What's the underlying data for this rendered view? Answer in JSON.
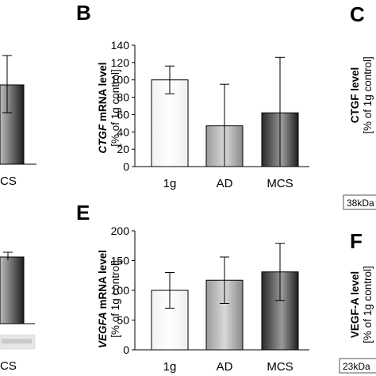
{
  "panels": {
    "B": "B",
    "C": "C",
    "E": "E",
    "F": "F"
  },
  "left_partial": {
    "top_category": "CS",
    "bottom_category": "CS"
  },
  "right_partial": {
    "C_ylabel_line1": "CTGF level",
    "C_ylabel_line2": "[% of 1g control]",
    "C_blot": "38kDa",
    "F_ylabel_line1": "VEGF-A level",
    "F_ylabel_line2": "[% of 1g control]",
    "F_blot": "23kDa"
  },
  "colors": {
    "bar_1g": "#ffffff",
    "bar_AD": "#b8b8b8",
    "bar_MCS": "#5a5a5a"
  },
  "chart_data": [
    {
      "panel": "B",
      "type": "bar",
      "categories": [
        "1g",
        "AD",
        "MCS"
      ],
      "values": [
        100,
        47,
        62
      ],
      "errors": [
        16,
        48,
        64
      ],
      "ylim": [
        0,
        140
      ],
      "yticks": [
        0,
        20,
        40,
        60,
        80,
        100,
        120,
        140
      ],
      "ylabel_gene": "CTGF",
      "ylabel_rest": " mRNA level",
      "ylabel_line2": "[% of 1g control]"
    },
    {
      "panel": "E",
      "type": "bar",
      "categories": [
        "1g",
        "AD",
        "MCS"
      ],
      "values": [
        100,
        117,
        131
      ],
      "errors": [
        30,
        39,
        48
      ],
      "ylim": [
        0,
        200
      ],
      "yticks": [
        0,
        50,
        100,
        150,
        200
      ],
      "ylabel_gene": "VEGFA",
      "ylabel_rest": " mRNA level",
      "ylabel_line2": "[% of 1g control]"
    }
  ]
}
